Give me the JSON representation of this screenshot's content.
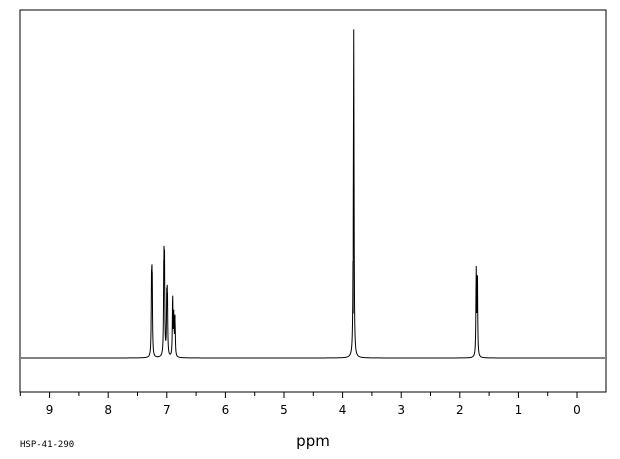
{
  "chart_data": {
    "type": "line",
    "title": "",
    "xlabel": "ppm",
    "ylabel": "",
    "x_reversed": true,
    "xlim": [
      9.5,
      -0.5
    ],
    "ylim": [
      0,
      1.0
    ],
    "grid": false,
    "xticks": [
      9,
      8,
      7,
      6,
      5,
      4,
      3,
      2,
      1,
      0
    ],
    "xticks_minor_step": 0.5,
    "peaks": [
      {
        "ppm": 7.26,
        "height": 0.23
      },
      {
        "ppm": 7.25,
        "height": 0.24
      },
      {
        "ppm": 7.05,
        "height": 0.28
      },
      {
        "ppm": 7.04,
        "height": 0.27
      },
      {
        "ppm": 7.0,
        "height": 0.17
      },
      {
        "ppm": 6.99,
        "height": 0.18
      },
      {
        "ppm": 6.9,
        "height": 0.19
      },
      {
        "ppm": 6.88,
        "height": 0.13
      },
      {
        "ppm": 6.86,
        "height": 0.12
      },
      {
        "ppm": 3.81,
        "height": 1.0
      },
      {
        "ppm": 3.82,
        "height": 0.14
      },
      {
        "ppm": 1.72,
        "height": 0.27
      },
      {
        "ppm": 1.7,
        "height": 0.26
      }
    ],
    "footnote": "HSP-41-290"
  }
}
